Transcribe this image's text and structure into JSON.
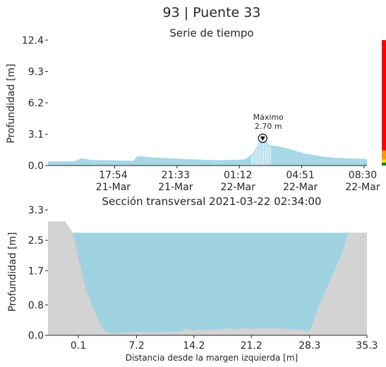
{
  "header": {
    "title": "93 | Puente 33"
  },
  "chart_data": [
    {
      "type": "area",
      "title": "Serie de tiempo",
      "ylabel": "Profundidad [m]",
      "xlabel": "",
      "ylim": [
        0,
        12.4
      ],
      "yticks": [
        {
          "value": 0.0,
          "label": "0.0"
        },
        {
          "value": 3.1,
          "label": "3.1"
        },
        {
          "value": 6.2,
          "label": "6.2"
        },
        {
          "value": 9.3,
          "label": "9.3"
        },
        {
          "value": 12.4,
          "label": "12.4"
        }
      ],
      "xlim": [
        "2021-03-21 14:00",
        "2021-03-22 08:40"
      ],
      "xticks": [
        {
          "value": "2021-03-21 17:54",
          "time": "17:54",
          "date": "21-Mar"
        },
        {
          "value": "2021-03-21 21:33",
          "time": "21:33",
          "date": "21-Mar"
        },
        {
          "value": "2021-03-22 01:12",
          "time": "01:12",
          "date": "22-Mar"
        },
        {
          "value": "2021-03-22 04:51",
          "time": "04:51",
          "date": "22-Mar"
        },
        {
          "value": "2021-03-22 08:30",
          "time": "08:30",
          "date": "22-Mar"
        }
      ],
      "series": [
        {
          "color": "#a6d8e6",
          "x": [
            "2021-03-21 14:00",
            "2021-03-21 15:30",
            "2021-03-21 16:00",
            "2021-03-21 16:30",
            "2021-03-21 18:00",
            "2021-03-21 19:00",
            "2021-03-21 19:15",
            "2021-03-21 20:00",
            "2021-03-21 22:00",
            "2021-03-22 00:00",
            "2021-03-22 01:30",
            "2021-03-22 02:00",
            "2021-03-22 02:20",
            "2021-03-22 02:34",
            "2021-03-22 03:00",
            "2021-03-22 03:30",
            "2021-03-22 04:00",
            "2021-03-22 05:00",
            "2021-03-22 06:00",
            "2021-03-22 07:00",
            "2021-03-22 08:40"
          ],
          "values": [
            0.42,
            0.42,
            0.72,
            0.55,
            0.5,
            0.48,
            0.95,
            0.82,
            0.65,
            0.52,
            0.6,
            1.2,
            2.2,
            2.7,
            2.0,
            1.9,
            1.7,
            1.2,
            0.9,
            0.75,
            0.65
          ]
        }
      ],
      "annotation": {
        "x": "2021-03-22 02:34",
        "y": 2.7,
        "label": "Máximo",
        "value": "2.70 m"
      },
      "level_bar": {
        "segments": [
          {
            "from": 0.0,
            "to": 0.3,
            "color": "#1a7f1a"
          },
          {
            "from": 0.3,
            "to": 0.6,
            "color": "#f2e600"
          },
          {
            "from": 0.6,
            "to": 1.5,
            "color": "#ff9900"
          },
          {
            "from": 1.5,
            "to": 12.4,
            "color": "#ff0000"
          }
        ]
      }
    },
    {
      "type": "area",
      "title": "Sección transversal 2021-03-22 02:34:00",
      "xlabel": "Distancia desde la margen izquierda [m]",
      "ylabel": "Profundidad [m]",
      "xlim": [
        -3.6,
        35.3
      ],
      "ylim": [
        0,
        3.3
      ],
      "xticks": [
        {
          "value": 0.1,
          "label": "0.1"
        },
        {
          "value": 7.2,
          "label": "7.2"
        },
        {
          "value": 14.2,
          "label": "14.2"
        },
        {
          "value": 21.2,
          "label": "21.2"
        },
        {
          "value": 28.3,
          "label": "28.3"
        },
        {
          "value": 35.3,
          "label": "35.3"
        }
      ],
      "yticks": [
        {
          "value": 0.0,
          "label": "0.0"
        },
        {
          "value": 0.8,
          "label": "0.8"
        },
        {
          "value": 1.7,
          "label": "1.7"
        },
        {
          "value": 2.5,
          "label": "2.5"
        },
        {
          "value": 3.3,
          "label": "3.3"
        }
      ],
      "water_level": 2.7,
      "water_color": "#9fd2e1",
      "terrain_color": "#d3d3d3",
      "terrain": {
        "x": [
          -3.6,
          -1.5,
          -0.6,
          1.0,
          2.4,
          3.4,
          4.0,
          4.6,
          5.3,
          6.6,
          8.2,
          10.7,
          12.5,
          13.3,
          14.0,
          15.0,
          16.4,
          18.5,
          19.6,
          20.3,
          21.2,
          22.1,
          24.6,
          25.6,
          26.8,
          27.7,
          28.2,
          28.6,
          29.4,
          30.9,
          32.5,
          33.0,
          33.4,
          35.3
        ],
        "values": [
          3.0,
          3.0,
          2.7,
          1.2,
          0.45,
          0.08,
          0.05,
          0.04,
          0.05,
          0.09,
          0.08,
          0.09,
          0.1,
          0.18,
          0.12,
          0.15,
          0.14,
          0.18,
          0.16,
          0.18,
          0.17,
          0.18,
          0.18,
          0.16,
          0.15,
          0.12,
          0.1,
          0.25,
          0.75,
          1.5,
          2.3,
          2.7,
          2.7,
          2.7
        ]
      }
    }
  ]
}
